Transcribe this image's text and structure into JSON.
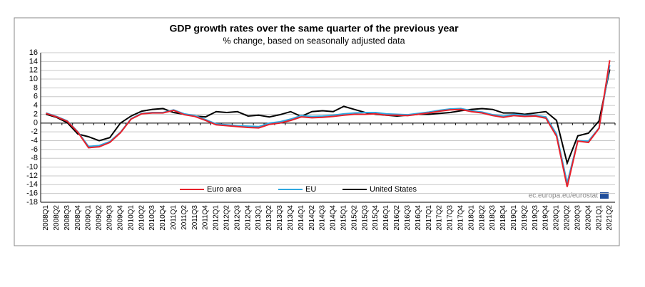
{
  "chart_data": {
    "type": "line",
    "title": "GDP growth rates over the same quarter of the previous year",
    "subtitle": "% change, based on seasonally adjusted data",
    "source": "ec.europa.eu/eurostat",
    "categories": [
      "2008Q1",
      "2008Q2",
      "2008Q3",
      "2008Q4",
      "2009Q1",
      "2009Q2",
      "2009Q3",
      "2009Q4",
      "2010Q1",
      "2010Q2",
      "2010Q3",
      "2010Q4",
      "2011Q1",
      "2011Q2",
      "2011Q3",
      "2011Q4",
      "2012Q1",
      "2012Q2",
      "2012Q3",
      "2012Q4",
      "2013Q1",
      "2013Q2",
      "2013Q3",
      "2013Q4",
      "2014Q1",
      "2014Q2",
      "2014Q3",
      "2014Q4",
      "2015Q1",
      "2015Q2",
      "2015Q3",
      "2015Q4",
      "2016Q1",
      "2016Q2",
      "2016Q3",
      "2016Q4",
      "2017Q1",
      "2017Q2",
      "2017Q3",
      "2017Q4",
      "2018Q1",
      "2018Q2",
      "2018Q3",
      "2018Q4",
      "2019Q1",
      "2019Q2",
      "2019Q3",
      "2019Q4",
      "2020Q1",
      "2020Q2",
      "2020Q3",
      "2020Q4",
      "2021Q1",
      "2021Q2"
    ],
    "series": [
      {
        "name": "Euro area",
        "color": "#e8202a",
        "values": [
          2.2,
          1.4,
          0.4,
          -2.1,
          -5.6,
          -5.4,
          -4.4,
          -2.2,
          0.9,
          2.1,
          2.3,
          2.3,
          2.9,
          1.9,
          1.5,
          0.6,
          -0.4,
          -0.6,
          -0.8,
          -1.0,
          -1.1,
          -0.3,
          0.0,
          0.6,
          1.4,
          1.2,
          1.3,
          1.5,
          1.8,
          2.0,
          2.0,
          2.1,
          1.8,
          1.8,
          1.7,
          2.0,
          2.3,
          2.7,
          3.0,
          3.1,
          2.6,
          2.3,
          1.7,
          1.3,
          1.7,
          1.5,
          1.6,
          1.1,
          -3.0,
          -14.5,
          -4.1,
          -4.4,
          -1.2,
          14.3
        ]
      },
      {
        "name": "EU",
        "color": "#2ea8e0",
        "values": [
          2.3,
          1.5,
          0.5,
          -2.0,
          -5.3,
          -5.1,
          -4.2,
          -2.1,
          1.0,
          2.2,
          2.4,
          2.4,
          3.0,
          2.1,
          1.7,
          0.8,
          -0.2,
          -0.4,
          -0.6,
          -0.7,
          -0.8,
          0.0,
          0.3,
          0.9,
          1.7,
          1.5,
          1.6,
          1.8,
          2.1,
          2.3,
          2.4,
          2.4,
          2.1,
          2.0,
          1.9,
          2.2,
          2.5,
          2.9,
          3.2,
          3.3,
          2.8,
          2.5,
          1.9,
          1.6,
          2.0,
          1.8,
          1.8,
          1.4,
          -2.5,
          -13.6,
          -4.0,
          -4.1,
          -1.1,
          13.2
        ]
      },
      {
        "name": "United States",
        "color": "#000000",
        "values": [
          2.0,
          1.3,
          0.1,
          -2.5,
          -3.1,
          -4.0,
          -3.3,
          0.0,
          1.6,
          2.7,
          3.1,
          3.3,
          2.4,
          2.0,
          1.6,
          1.4,
          2.6,
          2.4,
          2.6,
          1.6,
          1.8,
          1.4,
          1.9,
          2.6,
          1.5,
          2.6,
          2.8,
          2.6,
          3.8,
          3.1,
          2.4,
          2.0,
          1.8,
          1.6,
          1.8,
          2.0,
          2.0,
          2.2,
          2.4,
          2.8,
          3.1,
          3.3,
          3.1,
          2.3,
          2.3,
          2.0,
          2.3,
          2.6,
          0.6,
          -9.1,
          -2.9,
          -2.3,
          0.5,
          12.2
        ]
      }
    ],
    "ylim": [
      -18,
      16
    ],
    "yticks": [
      -18,
      -16,
      -14,
      -12,
      -10,
      -8,
      -6,
      -4,
      -2,
      0,
      2,
      4,
      6,
      8,
      10,
      12,
      14,
      16
    ],
    "grid": true,
    "legend_position": "lower center"
  }
}
